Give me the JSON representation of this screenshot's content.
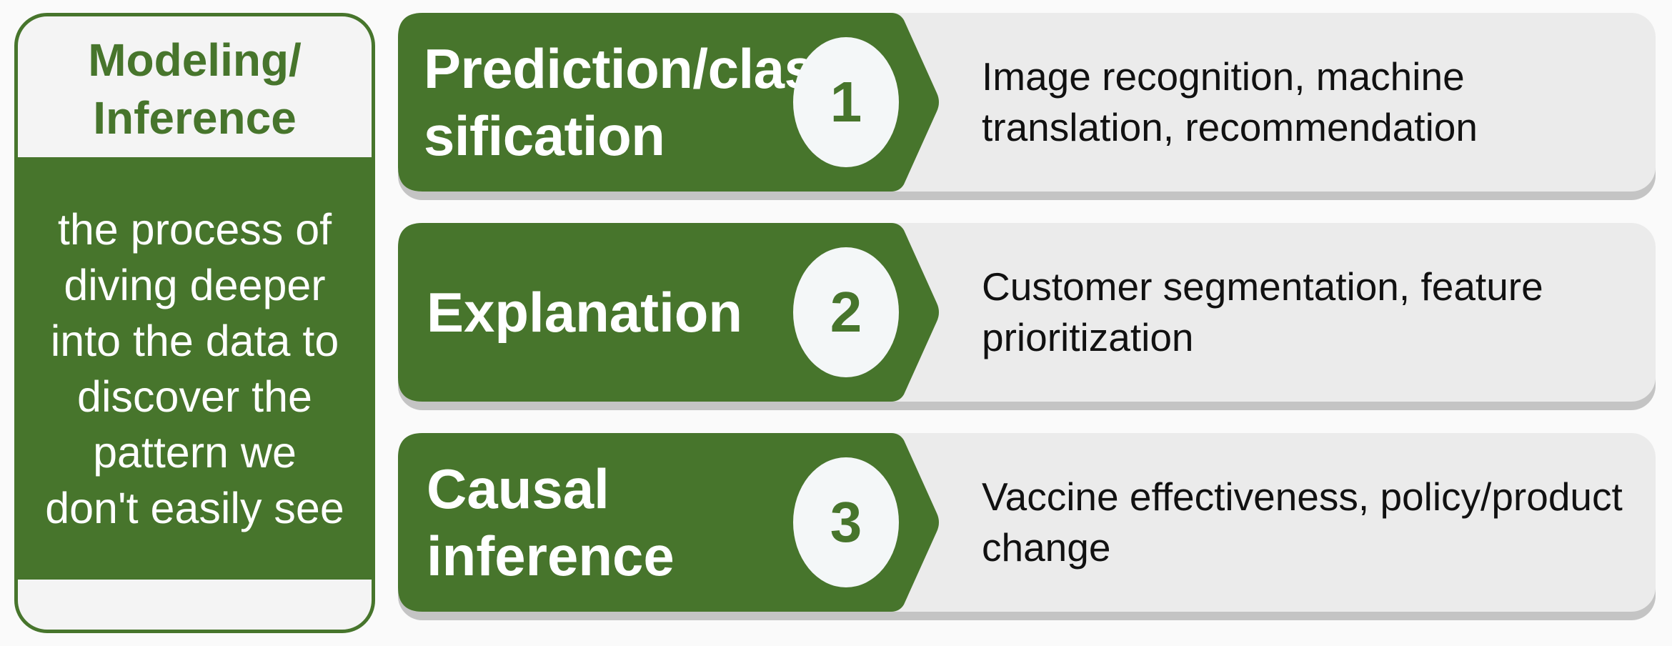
{
  "definition": {
    "title_line1": "Modeling/",
    "title_line2": "Inference",
    "body_lines": [
      "the process of",
      "diving deeper",
      "into the data to",
      "discover the",
      "pattern we",
      "don't easily see"
    ]
  },
  "rows": [
    {
      "label": "Prediction/classification",
      "number": "1",
      "description": "Image recognition, machine translation, recommendation"
    },
    {
      "label": "Explanation",
      "number": "2",
      "description": "Customer segmentation, feature prioritization"
    },
    {
      "label": "Causal inference",
      "number": "3",
      "description": "Vaccine effectiveness, policy/product change"
    }
  ],
  "colors": {
    "accent_green": "#47752c",
    "row_background": "#ebebeb",
    "row_shadow": "#c4c4c4",
    "circle_fill": "#f4f7f8",
    "description_text": "#111111"
  }
}
